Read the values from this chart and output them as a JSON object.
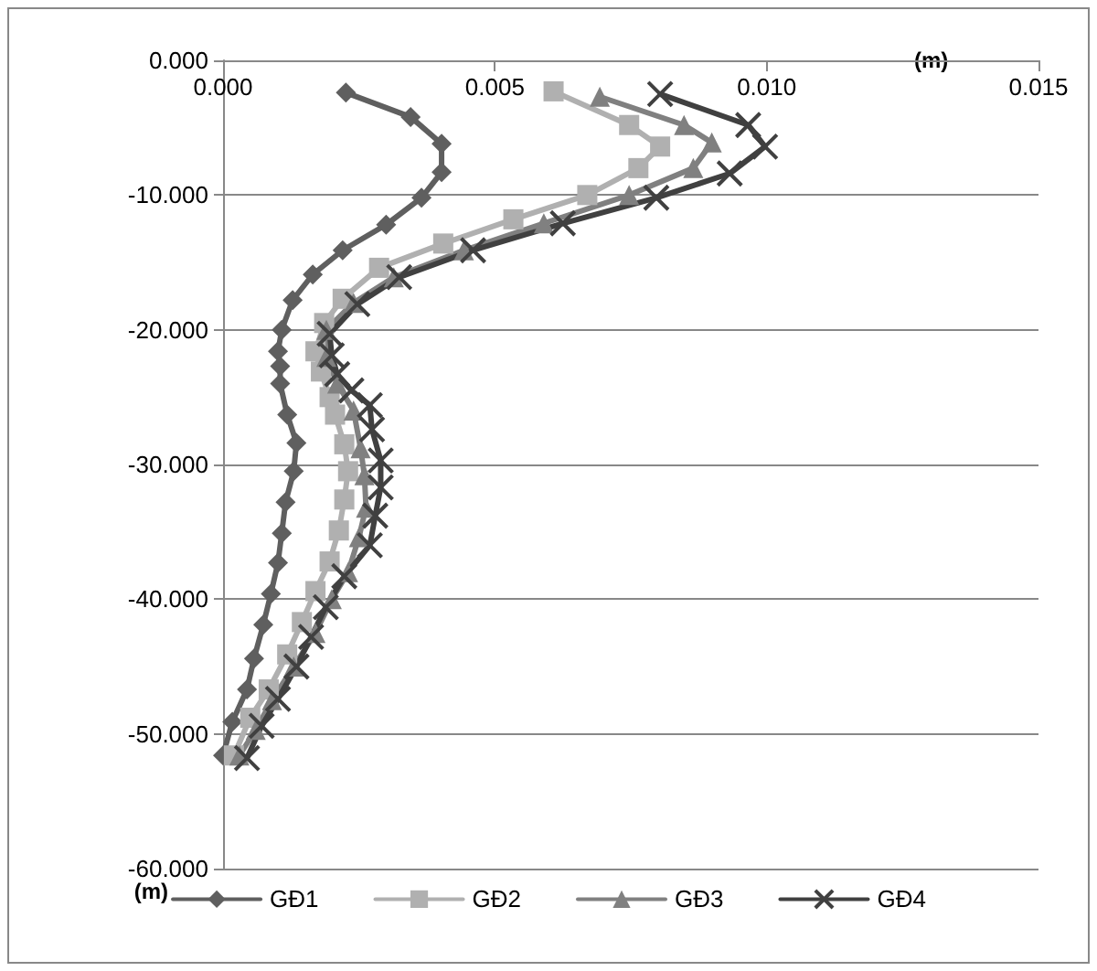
{
  "chart_data": {
    "type": "line",
    "xlabel": "(m)",
    "ylabel": "(m)",
    "xlim": [
      0,
      0.015
    ],
    "xticks": [
      {
        "value": 0,
        "label": "0.000"
      },
      {
        "value": 0.005,
        "label": "0.005"
      },
      {
        "value": 0.01,
        "label": "0.010"
      },
      {
        "value": 0.015,
        "label": "0.015"
      }
    ],
    "ylim": [
      -60,
      0
    ],
    "yticks": [
      {
        "value": 0,
        "label": "0.000"
      },
      {
        "value": -10,
        "label": "-10.000"
      },
      {
        "value": -20,
        "label": "-20.000"
      },
      {
        "value": -30,
        "label": "-30.000"
      },
      {
        "value": -40,
        "label": "-40.000"
      },
      {
        "value": -50,
        "label": "-50.000"
      },
      {
        "value": -60,
        "label": "-60.000"
      }
    ],
    "grid": "y",
    "legend": "bottom",
    "line_style": "solid",
    "series": [
      {
        "name": "GĐ1",
        "color": "#5f5f5f",
        "marker": "diamond",
        "x": [
          0.00226,
          0.00345,
          0.00402,
          0.00402,
          0.00365,
          0.003,
          0.0022,
          0.00165,
          0.00128,
          0.00108,
          0.00101,
          0.00105,
          0.00105,
          0.00118,
          0.00135,
          0.0013,
          0.00115,
          0.00108,
          0.00101,
          0.00088,
          0.00074,
          0.00057,
          0.00044,
          0.00017,
          0.0
        ],
        "values": [
          -2.4,
          -4.2,
          -6.2,
          -8.3,
          -10.2,
          -12.2,
          -14.1,
          -15.9,
          -17.8,
          -20,
          -21.6,
          -22.7,
          -24,
          -26.3,
          -28.4,
          -30.5,
          -32.8,
          -35.1,
          -37.3,
          -39.6,
          -41.9,
          -44.4,
          -46.7,
          -49.1,
          -51.6
        ]
      },
      {
        "name": "GĐ2",
        "color": "#b0b0b0",
        "marker": "square",
        "x": [
          0.00608,
          0.00747,
          0.00804,
          0.00764,
          0.0067,
          0.00534,
          0.00405,
          0.00287,
          0.0022,
          0.00186,
          0.0017,
          0.0018,
          0.00196,
          0.00206,
          0.00223,
          0.0023,
          0.00223,
          0.00213,
          0.00196,
          0.0017,
          0.00145,
          0.00118,
          0.00084,
          0.0005,
          0.0002
        ],
        "values": [
          -2.3,
          -4.8,
          -6.4,
          -8.0,
          -10,
          -11.8,
          -13.6,
          -15.4,
          -17.7,
          -19.5,
          -21.6,
          -23.1,
          -25,
          -26.3,
          -28.5,
          -30.5,
          -32.6,
          -34.9,
          -37.2,
          -39.4,
          -41.7,
          -44.1,
          -46.7,
          -48.8,
          -51.6
        ]
      },
      {
        "name": "GĐ3",
        "color": "#808080",
        "marker": "triangle",
        "x": [
          0.00693,
          0.00848,
          0.00899,
          0.00865,
          0.00747,
          0.0059,
          0.00443,
          0.00314,
          0.0024,
          0.0019,
          0.0019,
          0.0021,
          0.0024,
          0.00253,
          0.0026,
          0.00263,
          0.0025,
          0.0023,
          0.002,
          0.0017,
          0.0013,
          0.0009,
          0.0006,
          0.0003
        ],
        "values": [
          -2.7,
          -4.8,
          -6.1,
          -8.0,
          -10,
          -12.1,
          -14.1,
          -16.1,
          -18,
          -20,
          -22,
          -24,
          -26,
          -28.8,
          -30.8,
          -33.2,
          -35.4,
          -38,
          -40,
          -42.5,
          -45,
          -47.5,
          -49.7,
          -51.6
        ]
      },
      {
        "name": "GĐ4",
        "color": "#404040",
        "marker": "cross",
        "x": [
          0.00804,
          0.00966,
          0.00997,
          0.00932,
          0.00797,
          0.00625,
          0.0046,
          0.00324,
          0.00247,
          0.00196,
          0.002,
          0.0021,
          0.00236,
          0.0027,
          0.00274,
          0.0029,
          0.0029,
          0.0028,
          0.0027,
          0.00223,
          0.00189,
          0.00162,
          0.00135,
          0.00101,
          0.00071,
          0.00044
        ],
        "values": [
          -2.5,
          -4.8,
          -6.4,
          -8.4,
          -10.2,
          -12.1,
          -14.1,
          -16.1,
          -18.1,
          -20.3,
          -21.9,
          -23.3,
          -24.5,
          -25.6,
          -27.4,
          -29.7,
          -31.7,
          -33.8,
          -36,
          -38.3,
          -40.6,
          -42.8,
          -45.0,
          -47.4,
          -49.4,
          -51.8
        ]
      }
    ]
  }
}
